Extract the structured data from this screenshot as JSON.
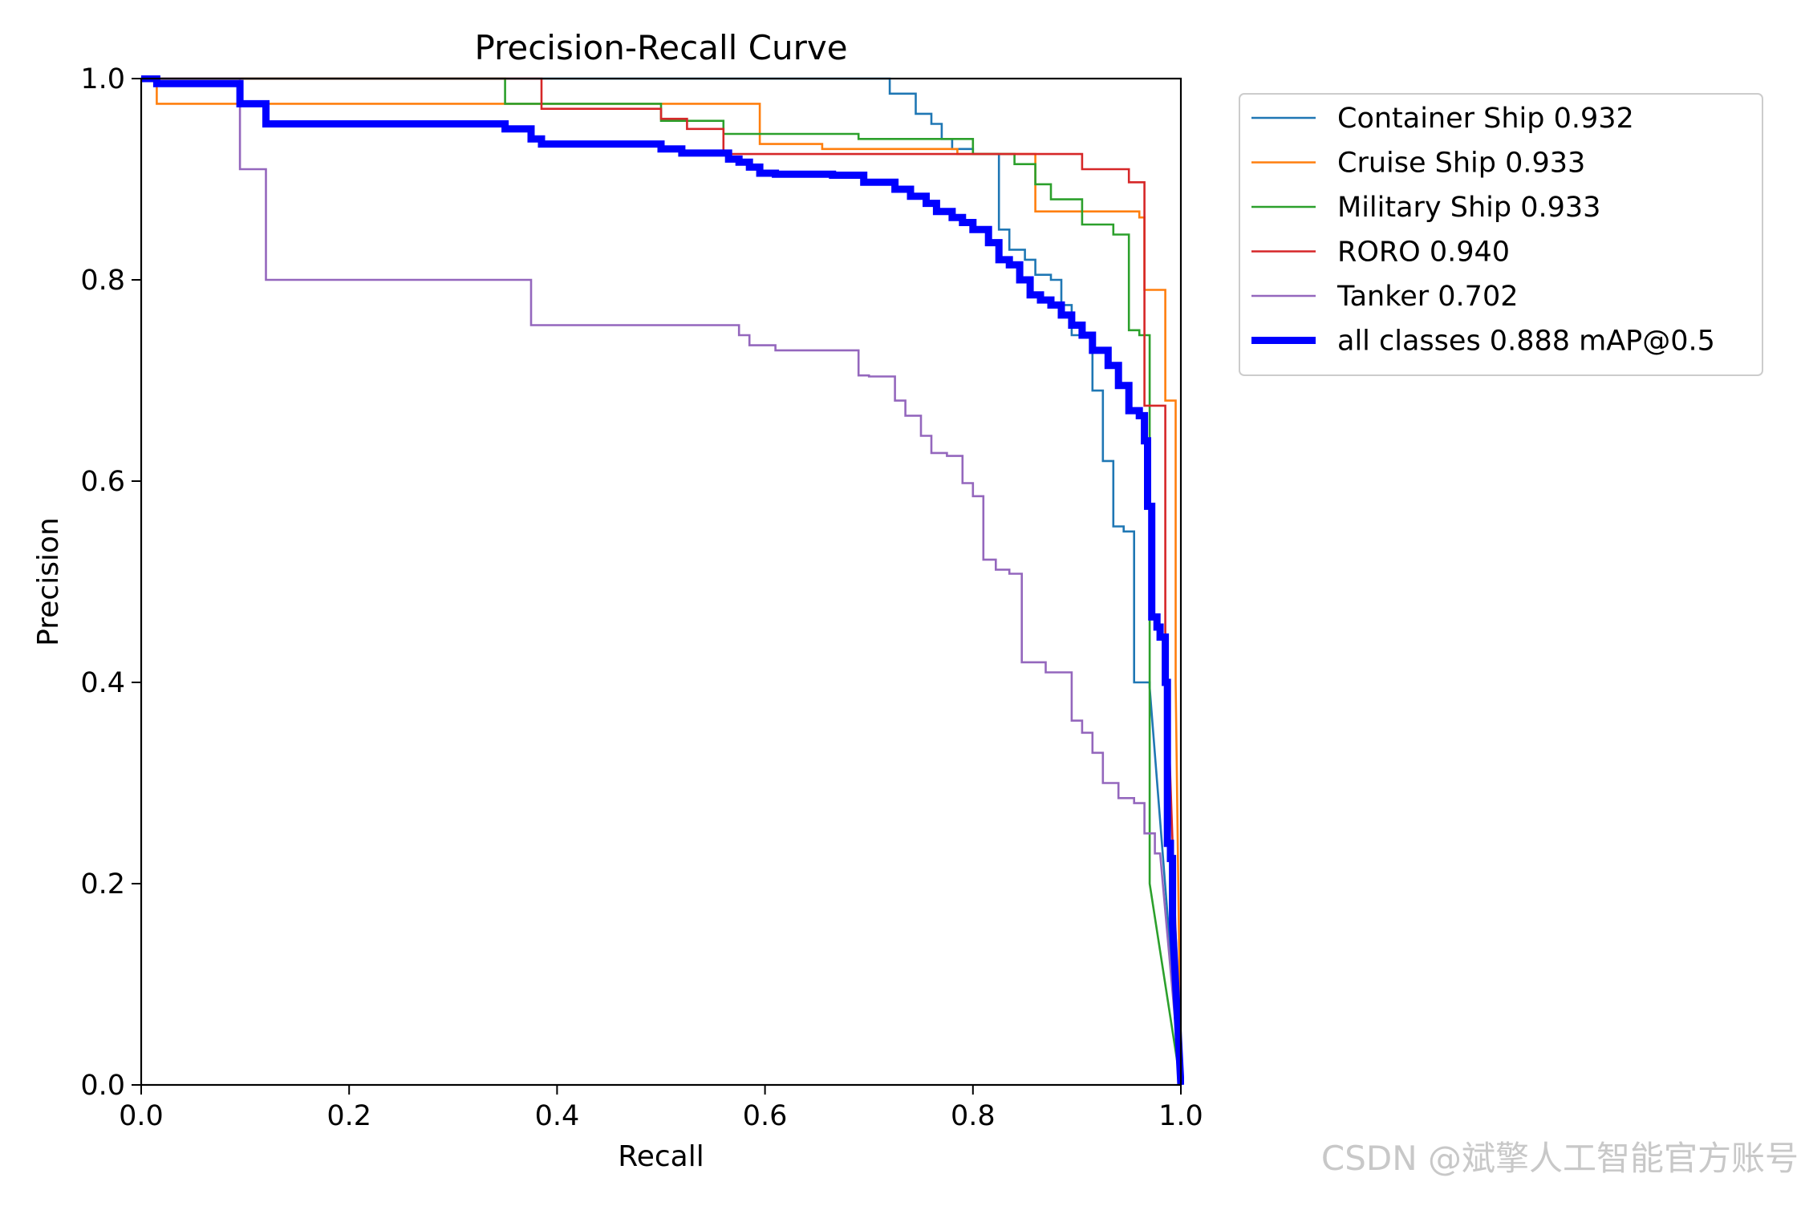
{
  "chart_data": {
    "type": "line",
    "title": "Precision-Recall Curve",
    "xlabel": "Recall",
    "ylabel": "Precision",
    "xlim": [
      0,
      1
    ],
    "ylim": [
      0,
      1
    ],
    "xticks": [
      "0.0",
      "0.2",
      "0.4",
      "0.6",
      "0.8",
      "1.0"
    ],
    "yticks": [
      "0.0",
      "0.2",
      "0.4",
      "0.6",
      "0.8",
      "1.0"
    ],
    "legend_position": "outside-right-top",
    "series": [
      {
        "name": "Container Ship 0.932",
        "color": "#1f77b4",
        "width": "thin",
        "points": [
          [
            0.0,
            1.0
          ],
          [
            0.72,
            1.0
          ],
          [
            0.72,
            0.985
          ],
          [
            0.745,
            0.985
          ],
          [
            0.745,
            0.965
          ],
          [
            0.76,
            0.965
          ],
          [
            0.76,
            0.955
          ],
          [
            0.77,
            0.955
          ],
          [
            0.77,
            0.94
          ],
          [
            0.78,
            0.94
          ],
          [
            0.78,
            0.93
          ],
          [
            0.8,
            0.93
          ],
          [
            0.8,
            0.925
          ],
          [
            0.825,
            0.925
          ],
          [
            0.825,
            0.85
          ],
          [
            0.835,
            0.85
          ],
          [
            0.835,
            0.83
          ],
          [
            0.85,
            0.83
          ],
          [
            0.85,
            0.82
          ],
          [
            0.86,
            0.82
          ],
          [
            0.86,
            0.805
          ],
          [
            0.875,
            0.805
          ],
          [
            0.875,
            0.8
          ],
          [
            0.885,
            0.8
          ],
          [
            0.885,
            0.775
          ],
          [
            0.895,
            0.775
          ],
          [
            0.895,
            0.745
          ],
          [
            0.915,
            0.745
          ],
          [
            0.915,
            0.69
          ],
          [
            0.925,
            0.69
          ],
          [
            0.925,
            0.62
          ],
          [
            0.935,
            0.62
          ],
          [
            0.935,
            0.555
          ],
          [
            0.945,
            0.555
          ],
          [
            0.945,
            0.55
          ],
          [
            0.955,
            0.55
          ],
          [
            0.955,
            0.4
          ],
          [
            0.97,
            0.4
          ],
          [
            0.97,
            0.395
          ],
          [
            1.0,
            0.0
          ]
        ]
      },
      {
        "name": "Cruise Ship 0.933",
        "color": "#ff7f0e",
        "width": "thin",
        "points": [
          [
            0.0,
            1.0
          ],
          [
            0.015,
            1.0
          ],
          [
            0.015,
            0.975
          ],
          [
            0.595,
            0.975
          ],
          [
            0.595,
            0.935
          ],
          [
            0.655,
            0.935
          ],
          [
            0.655,
            0.93
          ],
          [
            0.785,
            0.93
          ],
          [
            0.785,
            0.925
          ],
          [
            0.86,
            0.925
          ],
          [
            0.86,
            0.868
          ],
          [
            0.96,
            0.868
          ],
          [
            0.96,
            0.862
          ],
          [
            0.965,
            0.862
          ],
          [
            0.965,
            0.79
          ],
          [
            0.985,
            0.79
          ],
          [
            0.985,
            0.68
          ],
          [
            0.995,
            0.68
          ],
          [
            0.995,
            0.4
          ],
          [
            1.0,
            0.0
          ]
        ]
      },
      {
        "name": "Military Ship 0.933",
        "color": "#2ca02c",
        "width": "thin",
        "points": [
          [
            0.0,
            1.0
          ],
          [
            0.35,
            1.0
          ],
          [
            0.35,
            0.975
          ],
          [
            0.5,
            0.975
          ],
          [
            0.5,
            0.958
          ],
          [
            0.56,
            0.958
          ],
          [
            0.56,
            0.945
          ],
          [
            0.69,
            0.945
          ],
          [
            0.69,
            0.94
          ],
          [
            0.8,
            0.94
          ],
          [
            0.8,
            0.925
          ],
          [
            0.84,
            0.925
          ],
          [
            0.84,
            0.915
          ],
          [
            0.86,
            0.915
          ],
          [
            0.86,
            0.895
          ],
          [
            0.875,
            0.895
          ],
          [
            0.875,
            0.88
          ],
          [
            0.905,
            0.88
          ],
          [
            0.905,
            0.855
          ],
          [
            0.935,
            0.855
          ],
          [
            0.935,
            0.845
          ],
          [
            0.95,
            0.845
          ],
          [
            0.95,
            0.75
          ],
          [
            0.96,
            0.75
          ],
          [
            0.96,
            0.745
          ],
          [
            0.97,
            0.745
          ],
          [
            0.97,
            0.2
          ],
          [
            1.0,
            0.0
          ]
        ]
      },
      {
        "name": "RORO 0.940",
        "color": "#d62728",
        "width": "thin",
        "points": [
          [
            0.0,
            1.0
          ],
          [
            0.385,
            1.0
          ],
          [
            0.385,
            0.97
          ],
          [
            0.5,
            0.97
          ],
          [
            0.5,
            0.96
          ],
          [
            0.525,
            0.96
          ],
          [
            0.525,
            0.95
          ],
          [
            0.56,
            0.95
          ],
          [
            0.56,
            0.925
          ],
          [
            0.905,
            0.925
          ],
          [
            0.905,
            0.91
          ],
          [
            0.95,
            0.91
          ],
          [
            0.95,
            0.897
          ],
          [
            0.965,
            0.897
          ],
          [
            0.965,
            0.675
          ],
          [
            0.985,
            0.675
          ],
          [
            0.985,
            0.45
          ],
          [
            1.0,
            0.0
          ]
        ]
      },
      {
        "name": "Tanker 0.702",
        "color": "#9467bd",
        "width": "thin",
        "points": [
          [
            0.0,
            1.0
          ],
          [
            0.095,
            1.0
          ],
          [
            0.095,
            0.91
          ],
          [
            0.12,
            0.91
          ],
          [
            0.12,
            0.8
          ],
          [
            0.375,
            0.8
          ],
          [
            0.375,
            0.755
          ],
          [
            0.575,
            0.755
          ],
          [
            0.575,
            0.745
          ],
          [
            0.585,
            0.745
          ],
          [
            0.585,
            0.735
          ],
          [
            0.61,
            0.735
          ],
          [
            0.61,
            0.73
          ],
          [
            0.69,
            0.73
          ],
          [
            0.69,
            0.705
          ],
          [
            0.7,
            0.705
          ],
          [
            0.7,
            0.704
          ],
          [
            0.725,
            0.704
          ],
          [
            0.725,
            0.68
          ],
          [
            0.735,
            0.68
          ],
          [
            0.735,
            0.665
          ],
          [
            0.75,
            0.665
          ],
          [
            0.75,
            0.645
          ],
          [
            0.76,
            0.645
          ],
          [
            0.76,
            0.628
          ],
          [
            0.775,
            0.628
          ],
          [
            0.775,
            0.625
          ],
          [
            0.79,
            0.625
          ],
          [
            0.79,
            0.598
          ],
          [
            0.8,
            0.598
          ],
          [
            0.8,
            0.585
          ],
          [
            0.81,
            0.585
          ],
          [
            0.81,
            0.522
          ],
          [
            0.822,
            0.522
          ],
          [
            0.822,
            0.512
          ],
          [
            0.835,
            0.512
          ],
          [
            0.835,
            0.508
          ],
          [
            0.847,
            0.508
          ],
          [
            0.847,
            0.42
          ],
          [
            0.87,
            0.42
          ],
          [
            0.87,
            0.41
          ],
          [
            0.895,
            0.41
          ],
          [
            0.895,
            0.362
          ],
          [
            0.905,
            0.362
          ],
          [
            0.905,
            0.35
          ],
          [
            0.915,
            0.35
          ],
          [
            0.915,
            0.33
          ],
          [
            0.925,
            0.33
          ],
          [
            0.925,
            0.3
          ],
          [
            0.94,
            0.3
          ],
          [
            0.94,
            0.285
          ],
          [
            0.955,
            0.285
          ],
          [
            0.955,
            0.28
          ],
          [
            0.965,
            0.28
          ],
          [
            0.965,
            0.25
          ],
          [
            0.975,
            0.25
          ],
          [
            0.975,
            0.23
          ],
          [
            0.98,
            0.23
          ],
          [
            1.0,
            0.0
          ]
        ]
      },
      {
        "name": "all classes 0.888 mAP@0.5",
        "color": "#0000ff",
        "width": "thick",
        "points": [
          [
            0.0,
            1.0
          ],
          [
            0.015,
            1.0
          ],
          [
            0.015,
            0.995
          ],
          [
            0.095,
            0.995
          ],
          [
            0.095,
            0.975
          ],
          [
            0.12,
            0.975
          ],
          [
            0.12,
            0.955
          ],
          [
            0.35,
            0.955
          ],
          [
            0.35,
            0.95
          ],
          [
            0.375,
            0.95
          ],
          [
            0.375,
            0.94
          ],
          [
            0.385,
            0.94
          ],
          [
            0.385,
            0.935
          ],
          [
            0.5,
            0.935
          ],
          [
            0.5,
            0.93
          ],
          [
            0.52,
            0.93
          ],
          [
            0.52,
            0.926
          ],
          [
            0.565,
            0.926
          ],
          [
            0.565,
            0.92
          ],
          [
            0.575,
            0.92
          ],
          [
            0.575,
            0.917
          ],
          [
            0.585,
            0.917
          ],
          [
            0.585,
            0.912
          ],
          [
            0.595,
            0.912
          ],
          [
            0.595,
            0.906
          ],
          [
            0.61,
            0.906
          ],
          [
            0.61,
            0.905
          ],
          [
            0.665,
            0.905
          ],
          [
            0.665,
            0.904
          ],
          [
            0.695,
            0.904
          ],
          [
            0.695,
            0.897
          ],
          [
            0.725,
            0.897
          ],
          [
            0.725,
            0.89
          ],
          [
            0.74,
            0.89
          ],
          [
            0.74,
            0.883
          ],
          [
            0.755,
            0.883
          ],
          [
            0.755,
            0.876
          ],
          [
            0.765,
            0.876
          ],
          [
            0.765,
            0.868
          ],
          [
            0.78,
            0.868
          ],
          [
            0.78,
            0.862
          ],
          [
            0.79,
            0.862
          ],
          [
            0.79,
            0.857
          ],
          [
            0.8,
            0.857
          ],
          [
            0.8,
            0.85
          ],
          [
            0.815,
            0.85
          ],
          [
            0.815,
            0.837
          ],
          [
            0.825,
            0.837
          ],
          [
            0.825,
            0.82
          ],
          [
            0.835,
            0.82
          ],
          [
            0.835,
            0.815
          ],
          [
            0.845,
            0.815
          ],
          [
            0.845,
            0.8
          ],
          [
            0.855,
            0.8
          ],
          [
            0.855,
            0.785
          ],
          [
            0.865,
            0.785
          ],
          [
            0.865,
            0.78
          ],
          [
            0.875,
            0.78
          ],
          [
            0.875,
            0.775
          ],
          [
            0.885,
            0.775
          ],
          [
            0.885,
            0.765
          ],
          [
            0.895,
            0.765
          ],
          [
            0.895,
            0.755
          ],
          [
            0.905,
            0.755
          ],
          [
            0.905,
            0.745
          ],
          [
            0.915,
            0.745
          ],
          [
            0.915,
            0.73
          ],
          [
            0.93,
            0.73
          ],
          [
            0.93,
            0.715
          ],
          [
            0.94,
            0.715
          ],
          [
            0.94,
            0.695
          ],
          [
            0.95,
            0.695
          ],
          [
            0.95,
            0.67
          ],
          [
            0.96,
            0.67
          ],
          [
            0.96,
            0.665
          ],
          [
            0.965,
            0.665
          ],
          [
            0.965,
            0.64
          ],
          [
            0.968,
            0.64
          ],
          [
            0.968,
            0.575
          ],
          [
            0.972,
            0.575
          ],
          [
            0.972,
            0.465
          ],
          [
            0.977,
            0.465
          ],
          [
            0.977,
            0.455
          ],
          [
            0.98,
            0.455
          ],
          [
            0.98,
            0.445
          ],
          [
            0.985,
            0.445
          ],
          [
            0.985,
            0.4
          ],
          [
            0.987,
            0.4
          ],
          [
            0.987,
            0.24
          ],
          [
            0.99,
            0.24
          ],
          [
            0.99,
            0.225
          ],
          [
            0.992,
            0.225
          ],
          [
            0.992,
            0.16
          ],
          [
            1.0,
            0.0
          ]
        ]
      }
    ]
  },
  "watermark": "CSDN @斌擎人工智能官方账号"
}
